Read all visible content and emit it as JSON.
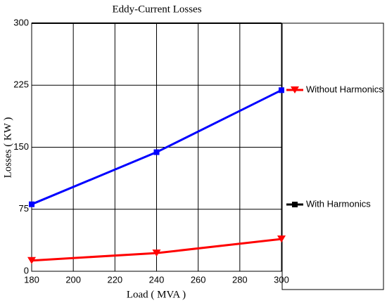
{
  "chart_data": {
    "type": "line",
    "title": "Eddy-Current Losses",
    "x_label": "Load ( MVA )",
    "y_label": "Losses ( KW )",
    "x": [
      180,
      240,
      300
    ],
    "series": [
      {
        "name": "Without Harmonics",
        "color": "#ff0000",
        "legend_color": "#ff0000",
        "marker": "triangle-down",
        "values": [
          13,
          22,
          39
        ]
      },
      {
        "name": "With Harmonics",
        "color": "#0000ff",
        "legend_color": "#000000",
        "marker": "square",
        "values": [
          81,
          144,
          219
        ]
      }
    ],
    "xlim": [
      180,
      300
    ],
    "xticks": [
      180,
      200,
      220,
      240,
      260,
      280,
      300
    ],
    "ylim": [
      0,
      300
    ],
    "yticks": [
      0,
      75,
      150,
      225,
      300
    ],
    "grid": true,
    "legend": "right"
  }
}
